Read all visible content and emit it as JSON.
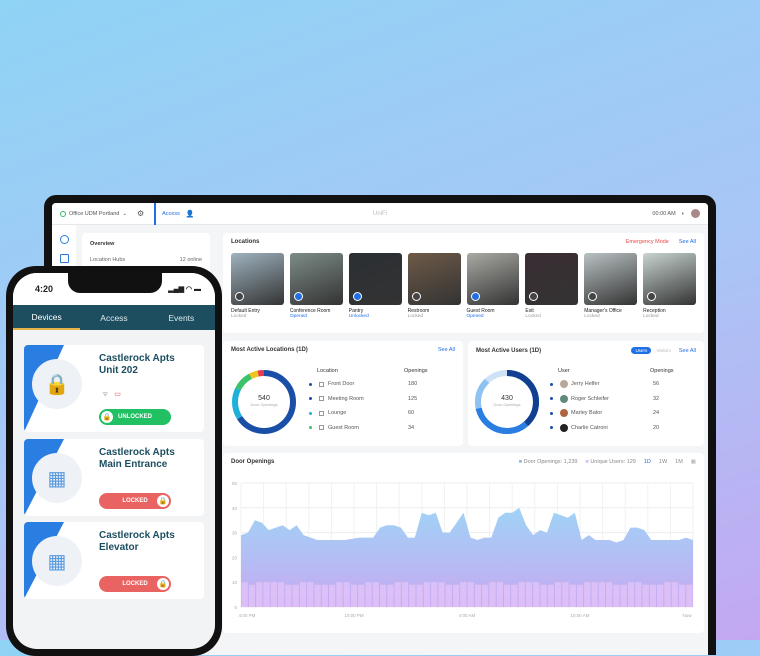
{
  "topbar": {
    "site": "Office UDM Portland",
    "app_tab": "Access",
    "brand": "UniFi",
    "time": "00:00 AM"
  },
  "overview": {
    "title": "Overview",
    "row_label": "Location Hubs",
    "row_value": "12 online"
  },
  "locations": {
    "title": "Locations",
    "emergency": "Emergency Mode",
    "see_all": "See All",
    "items": [
      {
        "name": "Default Entry",
        "status": "Locked",
        "color": "#9fb3bf"
      },
      {
        "name": "Conference Room",
        "status": "Opened",
        "color": "#7d8c86"
      },
      {
        "name": "Pantry",
        "status": "Unlocked",
        "color": "#2b2f33"
      },
      {
        "name": "Restroom",
        "status": "Locked",
        "color": "#6e5a48"
      },
      {
        "name": "Guest Room",
        "status": "Opened",
        "color": "#a9aaa4"
      },
      {
        "name": "Exit",
        "status": "Locked",
        "color": "#3a2d33"
      },
      {
        "name": "Manager's Office",
        "status": "Locked",
        "color": "#b9c2c3"
      },
      {
        "name": "Reception",
        "status": "Locked",
        "color": "#c8d4cf"
      }
    ]
  },
  "active_locations": {
    "title": "Most Active Locations (1D)",
    "see_all": "See All",
    "total": "540",
    "total_label": "Door Openings",
    "col_location": "Location",
    "col_openings": "Openings",
    "rows": [
      {
        "name": "Front Door",
        "value": "180"
      },
      {
        "name": "Meeting Room",
        "value": "125"
      },
      {
        "name": "Lounge",
        "value": "60"
      },
      {
        "name": "Guest Room",
        "value": "34"
      }
    ]
  },
  "active_users": {
    "title": "Most Active Users (1D)",
    "toggle_users": "Users",
    "toggle_visitors": "Visitors",
    "see_all": "See All",
    "total": "430",
    "total_label": "Door Openings",
    "col_user": "User",
    "col_openings": "Openings",
    "rows": [
      {
        "name": "Jerry Helfer",
        "value": "56"
      },
      {
        "name": "Roger Schleifer",
        "value": "32"
      },
      {
        "name": "Marley Bator",
        "value": "24"
      },
      {
        "name": "Charlie Catroni",
        "value": "20"
      }
    ]
  },
  "door_chart": {
    "title": "Door Openings",
    "legend_openings": "Door Openings: 1,239",
    "legend_users": "Unique Users: 129",
    "ranges": [
      "1D",
      "1W",
      "1M"
    ],
    "active_range": "1D"
  },
  "chart_data": {
    "type": "area",
    "title": "Door Openings",
    "ylim": [
      0,
      50
    ],
    "yticks": [
      "0",
      "10",
      "20",
      "30",
      "40",
      "50"
    ],
    "xticks": [
      "4:00 PM",
      "10:00 PM",
      "4:00 AM",
      "10:00 AM",
      "Now"
    ],
    "grid": true,
    "series": [
      {
        "name": "Door Openings",
        "type": "area",
        "values": [
          29,
          30,
          35,
          34,
          31,
          32,
          33,
          31,
          33,
          29,
          28,
          27,
          27,
          27,
          27,
          27,
          27.5,
          28,
          28,
          28,
          32,
          33,
          33,
          32,
          28,
          28,
          38,
          37,
          38,
          30,
          30,
          34,
          38,
          28,
          27,
          28,
          28,
          36,
          38,
          38,
          40,
          33,
          29,
          31,
          30,
          38,
          37,
          36,
          38,
          27,
          29,
          27,
          27,
          27,
          26,
          27,
          32,
          32,
          31,
          27,
          27,
          27,
          27,
          27,
          28,
          27
        ]
      },
      {
        "name": "Unique Users",
        "type": "bar",
        "values": [
          10,
          9,
          10,
          10,
          10,
          10,
          9,
          9,
          10,
          10,
          9,
          9,
          9,
          10,
          10,
          9,
          9,
          10,
          10,
          9,
          9,
          10,
          10,
          9,
          9,
          10,
          10,
          10,
          9,
          9,
          10,
          10,
          9,
          9,
          10,
          10,
          9,
          9,
          10,
          10,
          10,
          9,
          9,
          10,
          10,
          9,
          9,
          10,
          10,
          10,
          10,
          9,
          9,
          10,
          10,
          9,
          9,
          9,
          10,
          10,
          9,
          9
        ]
      }
    ]
  },
  "phone": {
    "time": "4:20",
    "tabs": [
      "Devices",
      "Access",
      "Events"
    ],
    "devices": [
      {
        "name_line1": "Castlerock Apts",
        "name_line2": "Unit 202",
        "status": "UNLOCKED"
      },
      {
        "name_line1": "Castlerock Apts",
        "name_line2": "Main Entrance",
        "status": "LOCKED"
      },
      {
        "name_line1": "Castlerock Apts",
        "name_line2": "Elevator",
        "status": "LOCKED"
      }
    ]
  }
}
